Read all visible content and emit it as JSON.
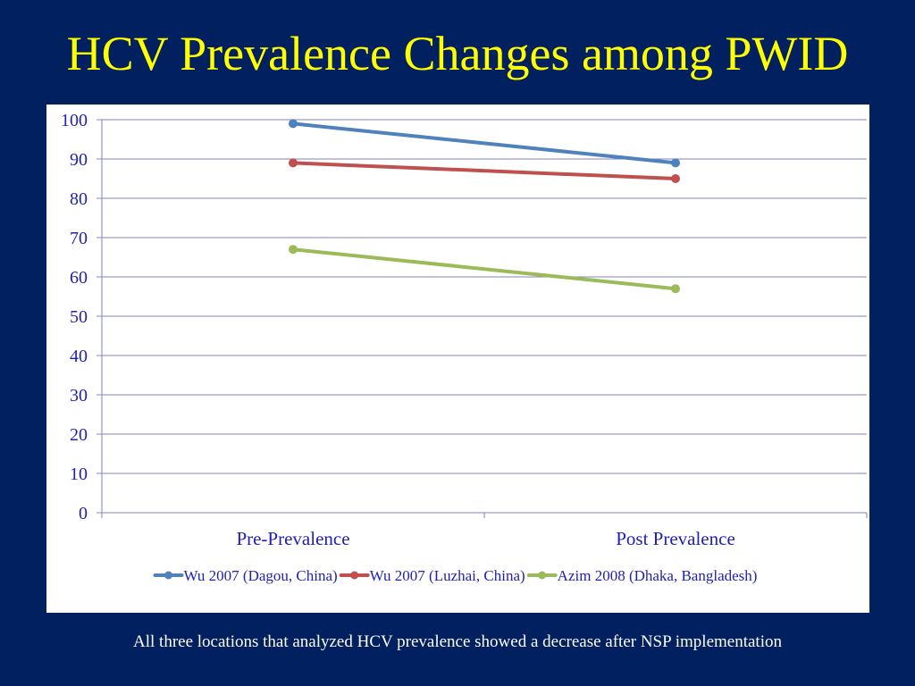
{
  "slide": {
    "title": "HCV Prevalence Changes among PWID",
    "caption": "All three locations that analyzed HCV prevalence showed a decrease after NSP implementation"
  },
  "colors": {
    "background": "#002060",
    "title": "#FFFF00",
    "gridline": "#8080C0",
    "axis_text": "#1F1FB4"
  },
  "chart_data": {
    "type": "line",
    "categories": [
      "Pre-Prevalence",
      "Post Prevalence"
    ],
    "ylim": [
      0,
      100
    ],
    "yticks": [
      0,
      10,
      20,
      30,
      40,
      50,
      60,
      70,
      80,
      90,
      100
    ],
    "grid": true,
    "legend": "bottom",
    "series": [
      {
        "name": "Wu 2007 (Dagou, China)",
        "values": [
          99,
          89
        ],
        "color": "#4F81BD"
      },
      {
        "name": "Wu 2007 (Luzhai, China)",
        "values": [
          89,
          85
        ],
        "color": "#C0504D"
      },
      {
        "name": "Azim 2008 (Dhaka, Bangladesh)",
        "values": [
          67,
          57
        ],
        "color": "#9BBB59"
      }
    ]
  }
}
